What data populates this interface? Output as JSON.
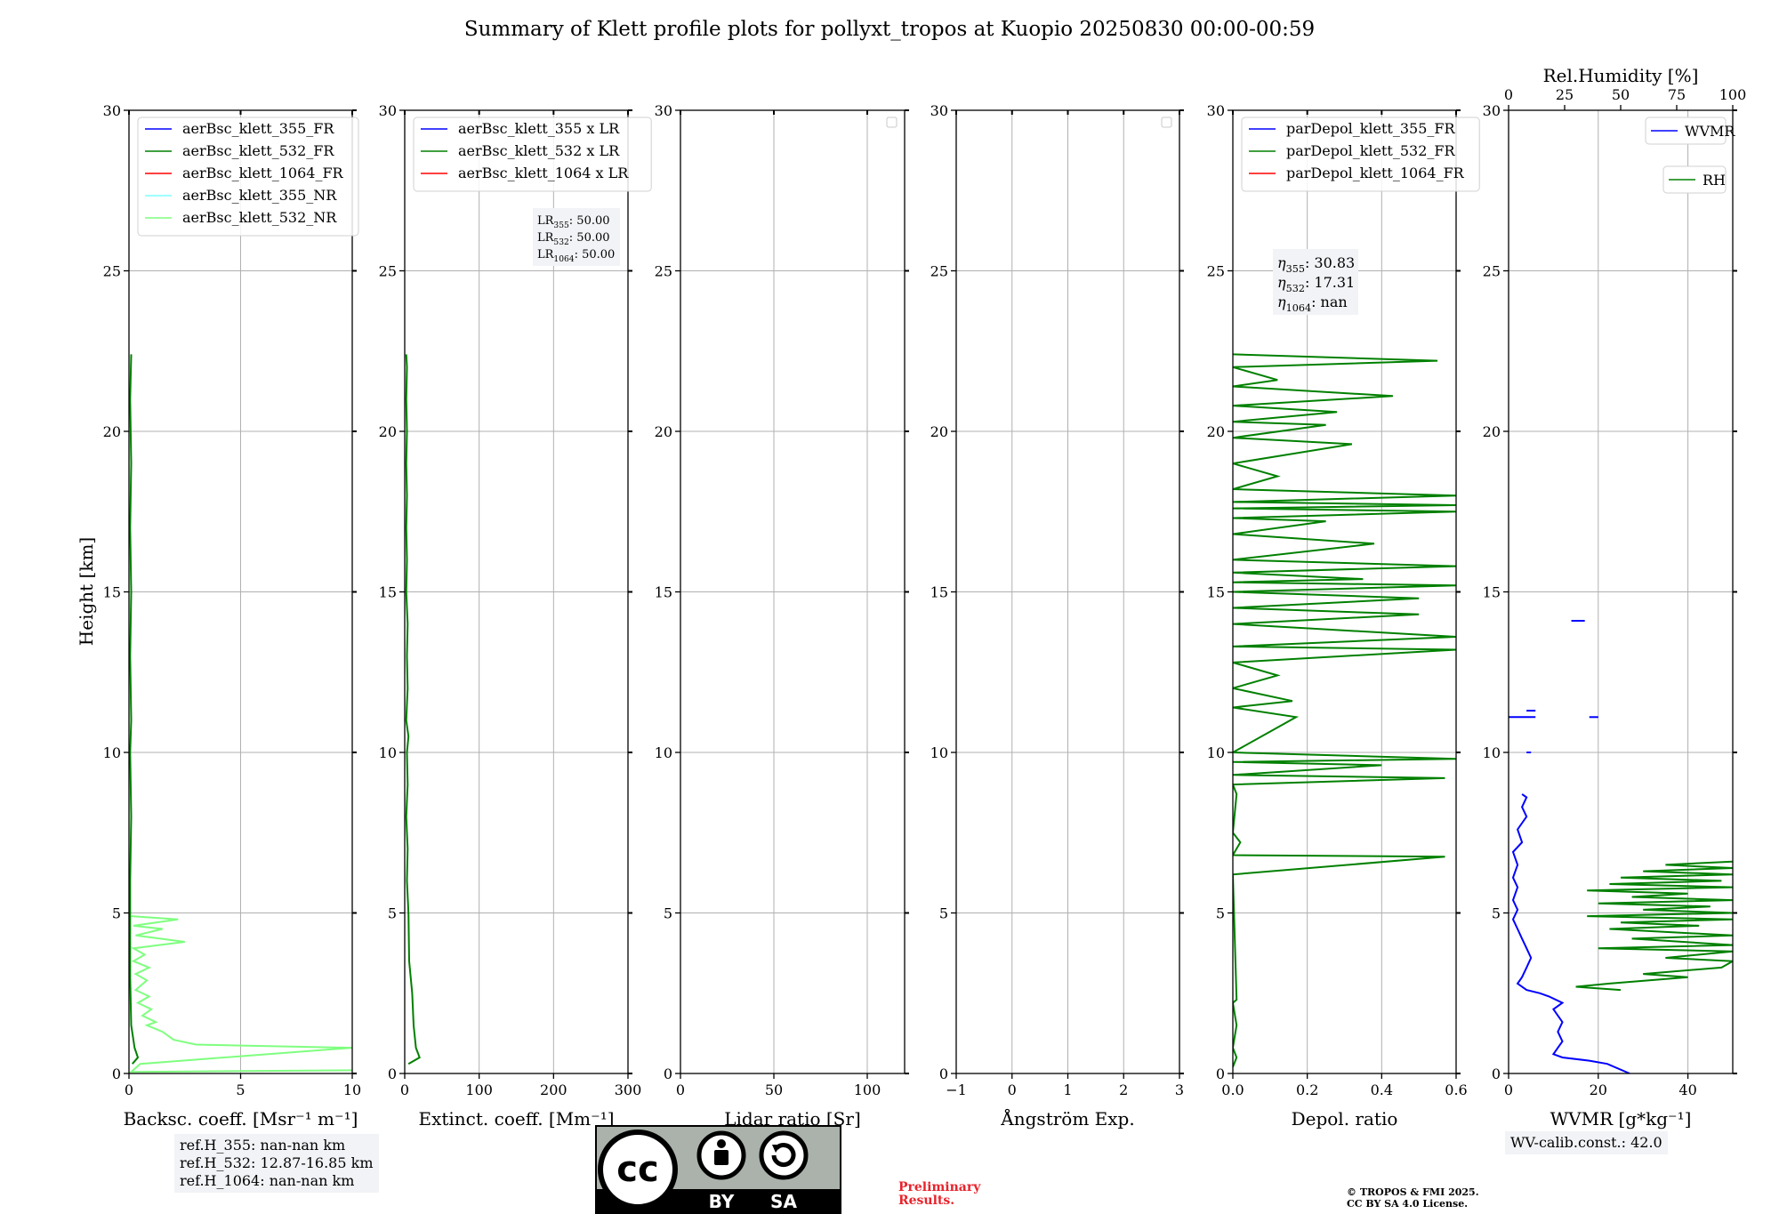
{
  "figure": {
    "title": "Summary of Klett profile plots for pollyxt_tropos at Kuopio 20250830 00:00-00:59",
    "ylabel": "Height [km]",
    "preliminary_lines": [
      "Preliminary",
      "Results."
    ],
    "copyright_lines": [
      "© TROPOS & FMI 2025.",
      "CC BY SA 4.0 License."
    ],
    "license_logo": {
      "label_by": "BY",
      "label_sa": "SA",
      "mark": "cc"
    }
  },
  "chart_data": [
    {
      "id": "bsc",
      "type": "line",
      "xlabel": "Backsc. coeff. [Msr⁻¹ m⁻¹]",
      "xlim": [
        0,
        10
      ],
      "xticks": [
        0,
        5,
        10
      ],
      "ylim": [
        0,
        30
      ],
      "yticks": [
        0,
        5,
        10,
        15,
        20,
        25,
        30
      ],
      "grid": true,
      "legend": [
        "aerBsc_klett_355_FR",
        "aerBsc_klett_532_FR",
        "aerBsc_klett_1064_FR",
        "aerBsc_klett_355_NR",
        "aerBsc_klett_532_NR"
      ],
      "legend_colors": [
        "#0000ff",
        "#008000",
        "#ff0000",
        "#7fffff",
        "#7fff7f"
      ],
      "legend_position": "top-left",
      "series": [
        {
          "name": "aerBsc_klett_532_FR",
          "color": "#008000",
          "points": [
            [
              0.15,
              0.3
            ],
            [
              0.4,
              0.5
            ],
            [
              0.25,
              0.8
            ],
            [
              0.1,
              1.5
            ],
            [
              0.05,
              3
            ],
            [
              0.05,
              6
            ],
            [
              0.1,
              8
            ],
            [
              0.05,
              10
            ],
            [
              0.1,
              11
            ],
            [
              0.05,
              13
            ],
            [
              0.1,
              15
            ],
            [
              0.05,
              17
            ],
            [
              0.1,
              19
            ],
            [
              0.05,
              21
            ],
            [
              0.1,
              22.4
            ]
          ]
        },
        {
          "name": "aerBsc_klett_532_NR",
          "color": "#7fff7f",
          "points": [
            [
              10,
              0.1
            ],
            [
              0.1,
              0.05
            ],
            [
              0.5,
              0.3
            ],
            [
              10,
              0.8
            ],
            [
              3,
              0.9
            ],
            [
              2,
              1.05
            ],
            [
              1.5,
              1.3
            ],
            [
              0.8,
              1.5
            ],
            [
              1.2,
              1.6
            ],
            [
              0.6,
              1.8
            ],
            [
              1.0,
              2.0
            ],
            [
              0.4,
              2.2
            ],
            [
              0.9,
              2.4
            ],
            [
              0.3,
              2.6
            ],
            [
              0.8,
              2.9
            ],
            [
              0.3,
              3.1
            ],
            [
              0.9,
              3.3
            ],
            [
              0.2,
              3.5
            ],
            [
              0.7,
              3.7
            ],
            [
              0.2,
              3.9
            ],
            [
              2.5,
              4.1
            ],
            [
              0.3,
              4.3
            ],
            [
              1.5,
              4.5
            ],
            [
              0.2,
              4.6
            ],
            [
              2.2,
              4.8
            ],
            [
              0.1,
              4.9
            ]
          ]
        }
      ]
    },
    {
      "id": "ext",
      "type": "line",
      "xlabel": "Extinct. coeff. [Mm⁻¹]",
      "xlim": [
        0,
        300
      ],
      "xticks": [
        0,
        100,
        200,
        300
      ],
      "ylim": [
        0,
        30
      ],
      "yticks": [
        0,
        5,
        10,
        15,
        20,
        25,
        30
      ],
      "grid": true,
      "legend": [
        "aerBsc_klett_355 x LR",
        "aerBsc_klett_532 x LR",
        "aerBsc_klett_1064 x LR"
      ],
      "legend_colors": [
        "#0000ff",
        "#008000",
        "#ff0000"
      ],
      "legend_position": "top-left",
      "info_lines": [
        {
          "label": "LR",
          "sub": "355",
          "value": ": 50.00"
        },
        {
          "label": "LR",
          "sub": "532",
          "value": ": 50.00"
        },
        {
          "label": "LR",
          "sub": "1064",
          "value": ": 50.00"
        }
      ],
      "series": [
        {
          "name": "aerBsc_klett_532 x LR",
          "color": "#008000",
          "points": [
            [
              5,
              0.3
            ],
            [
              20,
              0.5
            ],
            [
              15,
              0.8
            ],
            [
              12,
              1.5
            ],
            [
              10,
              2.5
            ],
            [
              6,
              3.5
            ],
            [
              5,
              5
            ],
            [
              3,
              6
            ],
            [
              4,
              7
            ],
            [
              2,
              8
            ],
            [
              4,
              9
            ],
            [
              3,
              10
            ],
            [
              5,
              10.5
            ],
            [
              2,
              11
            ],
            [
              4,
              12
            ],
            [
              3,
              13
            ],
            [
              4,
              14
            ],
            [
              2,
              15
            ],
            [
              3,
              16
            ],
            [
              2,
              17
            ],
            [
              3,
              18
            ],
            [
              2,
              19
            ],
            [
              3,
              20
            ],
            [
              2,
              21
            ],
            [
              3,
              22
            ],
            [
              2,
              22.4
            ]
          ]
        }
      ]
    },
    {
      "id": "lr",
      "type": "line",
      "xlabel": "Lidar ratio [Sr]",
      "xlim": [
        0,
        120
      ],
      "xticks": [
        0,
        50,
        100
      ],
      "ylim": [
        0,
        30
      ],
      "yticks": [
        0,
        5,
        10,
        15,
        20,
        25,
        30
      ],
      "grid": true,
      "legend": [],
      "legend_colors": [],
      "legend_position": "top-right",
      "series": []
    },
    {
      "id": "ae",
      "type": "line",
      "xlabel": "Ångström Exp.",
      "xlim": [
        -1,
        3
      ],
      "xticks": [
        -1,
        0,
        1,
        2,
        3
      ],
      "ylim": [
        0,
        30
      ],
      "yticks": [
        0,
        5,
        10,
        15,
        20,
        25,
        30
      ],
      "grid": true,
      "legend": [],
      "legend_colors": [],
      "legend_position": "top-right",
      "series": []
    },
    {
      "id": "depol",
      "type": "line",
      "xlabel": "Depol. ratio",
      "xlim": [
        0,
        0.6
      ],
      "xticks": [
        0.0,
        0.2,
        0.4,
        0.6
      ],
      "ylim": [
        0,
        30
      ],
      "yticks": [
        0,
        5,
        10,
        15,
        20,
        25,
        30
      ],
      "grid": true,
      "legend": [
        "parDepol_klett_355_FR",
        "parDepol_klett_532_FR",
        "parDepol_klett_1064_FR"
      ],
      "legend_colors": [
        "#0000ff",
        "#008000",
        "#ff0000"
      ],
      "legend_position": "top-left",
      "info_lines": [
        {
          "label": "η",
          "sub": "355",
          "value": ": 30.83"
        },
        {
          "label": "η",
          "sub": "532",
          "value": ": 17.31"
        },
        {
          "label": "η",
          "sub": "1064",
          "value": ": nan"
        }
      ],
      "series": [
        {
          "name": "parDepol_klett_532_FR",
          "color": "#008000",
          "points": [
            [
              0,
              0.2
            ],
            [
              0.01,
              0.5
            ],
            [
              0,
              0.8
            ],
            [
              0.01,
              1.5
            ],
            [
              0,
              2.2
            ],
            [
              0.01,
              2.3
            ],
            [
              0,
              6.2
            ],
            [
              0.57,
              6.75
            ],
            [
              0,
              6.8
            ],
            [
              0.02,
              7.2
            ],
            [
              0,
              7.5
            ],
            [
              0.01,
              8.7
            ],
            [
              0,
              9.0
            ],
            [
              0.57,
              9.2
            ],
            [
              0,
              9.3
            ],
            [
              0.4,
              9.6
            ],
            [
              0,
              9.7
            ],
            [
              0.6,
              9.8
            ],
            [
              0,
              10.0
            ],
            [
              0.17,
              11.1
            ],
            [
              0,
              11.4
            ],
            [
              0.16,
              11.6
            ],
            [
              0,
              12.0
            ],
            [
              0.12,
              12.4
            ],
            [
              0,
              12.8
            ],
            [
              0.6,
              13.2
            ],
            [
              0,
              13.3
            ],
            [
              0.6,
              13.6
            ],
            [
              0,
              14.0
            ],
            [
              0.5,
              14.3
            ],
            [
              0,
              14.5
            ],
            [
              0.5,
              14.8
            ],
            [
              0,
              15.0
            ],
            [
              0.6,
              15.2
            ],
            [
              0,
              15.3
            ],
            [
              0.35,
              15.4
            ],
            [
              0,
              15.6
            ],
            [
              0.6,
              15.8
            ],
            [
              0,
              16.0
            ],
            [
              0.38,
              16.5
            ],
            [
              0,
              16.8
            ],
            [
              0.25,
              17.2
            ],
            [
              0,
              17.3
            ],
            [
              0.6,
              17.5
            ],
            [
              0,
              17.6
            ],
            [
              0.6,
              17.7
            ],
            [
              0,
              17.8
            ],
            [
              0.6,
              18.0
            ],
            [
              0,
              18.2
            ],
            [
              0.12,
              18.6
            ],
            [
              0,
              19.0
            ],
            [
              0.32,
              19.6
            ],
            [
              0,
              19.8
            ],
            [
              0.25,
              20.2
            ],
            [
              0,
              20.3
            ],
            [
              0.28,
              20.6
            ],
            [
              0,
              20.8
            ],
            [
              0.43,
              21.1
            ],
            [
              0,
              21.4
            ],
            [
              0.12,
              21.6
            ],
            [
              0,
              22.0
            ],
            [
              0.55,
              22.2
            ],
            [
              0,
              22.4
            ]
          ]
        }
      ]
    },
    {
      "id": "wv",
      "type": "line",
      "xlabel": "WVMR [g*kg⁻¹]",
      "xlim": [
        0,
        50
      ],
      "xticks": [
        0,
        20,
        40
      ],
      "x2label": "Rel.Humidity [%]",
      "x2lim": [
        0,
        100
      ],
      "x2ticks": [
        0,
        25,
        50,
        75,
        100
      ],
      "ylim": [
        0,
        30
      ],
      "yticks": [
        0,
        5,
        10,
        15,
        20,
        25,
        30
      ],
      "grid": true,
      "legend": [
        "WVMR",
        "RH"
      ],
      "legend_colors": [
        "#0000ff",
        "#008000"
      ],
      "legend_position": "top-right",
      "calib_text": "WV-calib.const.: 42.0",
      "series": [
        {
          "name": "WVMR",
          "color": "#0000ff",
          "points": [
            [
              27,
              0
            ],
            [
              22,
              0.3
            ],
            [
              18,
              0.4
            ],
            [
              12,
              0.5
            ],
            [
              10,
              0.6
            ],
            [
              11,
              0.8
            ],
            [
              12,
              1.0
            ],
            [
              11,
              1.3
            ],
            [
              12,
              1.6
            ],
            [
              10,
              2.0
            ],
            [
              12,
              2.2
            ],
            [
              9,
              2.4
            ],
            [
              7,
              2.5
            ],
            [
              4,
              2.6
            ],
            [
              2,
              2.8
            ],
            [
              3,
              3.0
            ],
            [
              4,
              3.3
            ],
            [
              5,
              3.6
            ],
            [
              4,
              3.9
            ],
            [
              3,
              4.2
            ],
            [
              2,
              4.5
            ],
            [
              1,
              4.8
            ],
            [
              2,
              5.1
            ],
            [
              1,
              5.4
            ],
            [
              2,
              5.8
            ],
            [
              1,
              6.1
            ],
            [
              2,
              6.5
            ],
            [
              1,
              6.9
            ],
            [
              3,
              7.2
            ],
            [
              2,
              7.6
            ],
            [
              4,
              8.0
            ],
            [
              3,
              8.3
            ],
            [
              4,
              8.6
            ],
            [
              3,
              8.7
            ]
          ],
          "segments": [
            [
              [
                0,
                11.1
              ],
              [
                6,
                11.1
              ]
            ],
            [
              [
                18,
                11.1
              ],
              [
                20,
                11.1
              ]
            ],
            [
              [
                4,
                11.3
              ],
              [
                6,
                11.3
              ]
            ],
            [
              [
                14,
                14.1
              ],
              [
                17,
                14.1
              ]
            ],
            [
              [
                4,
                10.0
              ],
              [
                5,
                10.0
              ]
            ]
          ]
        },
        {
          "name": "RH",
          "color": "#008000",
          "axis": "x2",
          "points": [
            [
              50,
              2.6
            ],
            [
              30,
              2.7
            ],
            [
              45,
              2.8
            ],
            [
              80,
              3.0
            ],
            [
              60,
              3.1
            ],
            [
              95,
              3.3
            ],
            [
              100,
              3.5
            ],
            [
              70,
              3.6
            ],
            [
              100,
              3.8
            ],
            [
              40,
              3.9
            ],
            [
              100,
              4.0
            ],
            [
              55,
              4.2
            ],
            [
              100,
              4.3
            ],
            [
              45,
              4.5
            ],
            [
              85,
              4.6
            ],
            [
              50,
              4.7
            ],
            [
              100,
              4.8
            ],
            [
              35,
              4.9
            ],
            [
              100,
              5.0
            ],
            [
              60,
              5.1
            ],
            [
              90,
              5.2
            ],
            [
              40,
              5.3
            ],
            [
              100,
              5.4
            ],
            [
              55,
              5.5
            ],
            [
              80,
              5.6
            ],
            [
              35,
              5.7
            ],
            [
              100,
              5.8
            ],
            [
              45,
              5.9
            ],
            [
              95,
              6.0
            ],
            [
              50,
              6.1
            ],
            [
              100,
              6.2
            ],
            [
              60,
              6.3
            ],
            [
              100,
              6.4
            ],
            [
              70,
              6.5
            ],
            [
              100,
              6.6
            ]
          ]
        }
      ]
    }
  ],
  "ref_heights": [
    "ref.H_355: nan-nan km",
    "ref.H_532: 12.87-16.85 km",
    "ref.H_1064: nan-nan km"
  ]
}
